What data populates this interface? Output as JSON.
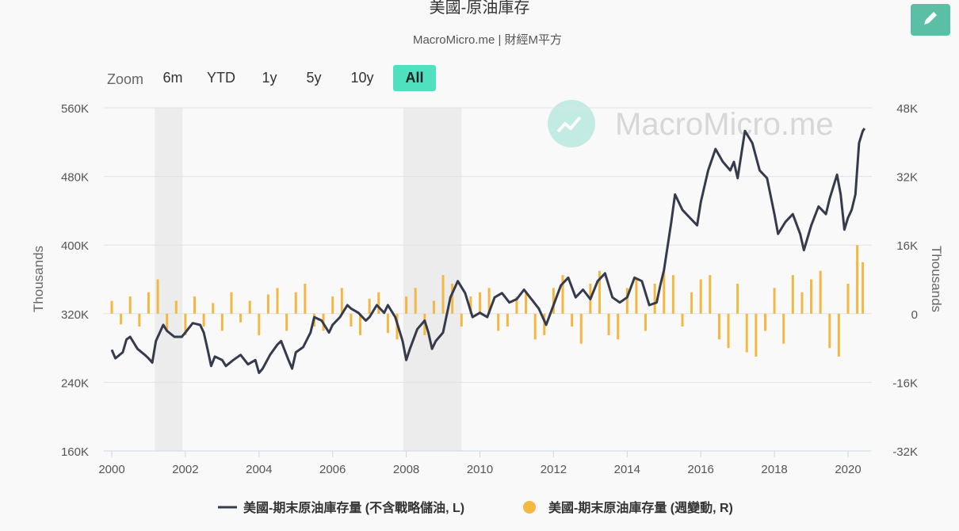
{
  "chart_data": {
    "type": "line-bar",
    "title": "美國-原油庫存",
    "subtitle": "MacroMicro.me | 財經M平方",
    "watermark": "MacroMicro.me",
    "zoom": {
      "label": "Zoom",
      "buttons": [
        "6m",
        "YTD",
        "1y",
        "5y",
        "10y",
        "All"
      ],
      "active": 5
    },
    "ylabel": "Thousands",
    "y2label": "Thousands",
    "xlim": [
      2000,
      2020.5
    ],
    "xticks": [
      2000,
      2002,
      2004,
      2006,
      2008,
      2010,
      2012,
      2014,
      2016,
      2018,
      2020
    ],
    "ylim": [
      160000,
      560000
    ],
    "yticks": [
      {
        "value": 160000,
        "label": "160K"
      },
      {
        "value": 240000,
        "label": "240K"
      },
      {
        "value": 320000,
        "label": "320K"
      },
      {
        "value": 400000,
        "label": "400K"
      },
      {
        "value": 480000,
        "label": "480K"
      },
      {
        "value": 560000,
        "label": "560K"
      }
    ],
    "y2lim": [
      -32000,
      48000
    ],
    "y2ticks": [
      {
        "value": -32000,
        "label": "-32K"
      },
      {
        "value": -16000,
        "label": "-16K"
      },
      0,
      {
        "value": 16000,
        "label": "16K"
      },
      {
        "value": 32000,
        "label": "32K"
      },
      {
        "value": 48000,
        "label": "48K"
      }
    ],
    "grid": true,
    "recessions": [
      [
        2001.17,
        2001.92
      ],
      [
        2007.92,
        2009.5
      ]
    ],
    "series": [
      {
        "name": "美國-期末原油庫存量 (不含戰略儲油, L)",
        "kind": "line",
        "color": "#363a4d",
        "x": [
          2000.0,
          2000.1,
          2000.3,
          2000.4,
          2000.5,
          2000.7,
          2000.9,
          2001.0,
          2001.1,
          2001.2,
          2001.4,
          2001.5,
          2001.7,
          2001.9,
          2002.0,
          2002.2,
          2002.4,
          2002.5,
          2002.6,
          2002.7,
          2002.8,
          2003.0,
          2003.1,
          2003.3,
          2003.5,
          2003.7,
          2003.9,
          2004.0,
          2004.1,
          2004.3,
          2004.5,
          2004.6,
          2004.8,
          2004.9,
          2005.0,
          2005.2,
          2005.4,
          2005.5,
          2005.7,
          2005.9,
          2006.0,
          2006.2,
          2006.4,
          2006.5,
          2006.7,
          2006.9,
          2007.0,
          2007.2,
          2007.4,
          2007.5,
          2007.7,
          2007.9,
          2008.0,
          2008.1,
          2008.3,
          2008.5,
          2008.6,
          2008.7,
          2008.8,
          2009.0,
          2009.2,
          2009.4,
          2009.6,
          2009.8,
          2010.0,
          2010.2,
          2010.4,
          2010.6,
          2010.8,
          2011.0,
          2011.2,
          2011.4,
          2011.6,
          2011.8,
          2012.0,
          2012.2,
          2012.4,
          2012.6,
          2012.8,
          2013.0,
          2013.2,
          2013.4,
          2013.6,
          2013.8,
          2014.0,
          2014.2,
          2014.4,
          2014.6,
          2014.8,
          2014.9,
          2015.0,
          2015.2,
          2015.3,
          2015.5,
          2015.7,
          2015.9,
          2016.0,
          2016.2,
          2016.4,
          2016.6,
          2016.8,
          2016.9,
          2017.0,
          2017.2,
          2017.4,
          2017.6,
          2017.8,
          2018.0,
          2018.1,
          2018.3,
          2018.5,
          2018.7,
          2018.8,
          2019.0,
          2019.2,
          2019.4,
          2019.5,
          2019.7,
          2019.8,
          2019.9,
          2020.0,
          2020.1,
          2020.2,
          2020.3,
          2020.4,
          2020.45
        ],
        "values": [
          278000,
          268000,
          275000,
          290000,
          293000,
          279000,
          272000,
          268000,
          263000,
          288000,
          307000,
          300000,
          293000,
          293000,
          298000,
          309000,
          307000,
          298000,
          279000,
          259000,
          270000,
          266000,
          259000,
          266000,
          272000,
          261000,
          266000,
          251000,
          256000,
          272000,
          284000,
          288000,
          266000,
          256000,
          275000,
          281000,
          298000,
          316000,
          312000,
          298000,
          307000,
          316000,
          330000,
          326000,
          321000,
          312000,
          316000,
          330000,
          321000,
          330000,
          316000,
          288000,
          266000,
          279000,
          302000,
          312000,
          298000,
          279000,
          288000,
          298000,
          339000,
          358000,
          344000,
          316000,
          321000,
          316000,
          339000,
          344000,
          333000,
          337000,
          348000,
          337000,
          326000,
          307000,
          330000,
          353000,
          362000,
          339000,
          348000,
          337000,
          358000,
          367000,
          339000,
          333000,
          339000,
          362000,
          358000,
          330000,
          333000,
          353000,
          371000,
          427000,
          459000,
          441000,
          432000,
          423000,
          450000,
          487000,
          512000,
          497000,
          487000,
          497000,
          478000,
          533000,
          519000,
          487000,
          478000,
          436000,
          413000,
          427000,
          436000,
          413000,
          394000,
          423000,
          445000,
          436000,
          454000,
          482000,
          459000,
          418000,
          432000,
          441000,
          459000,
          519000,
          533000,
          536000
        ]
      },
      {
        "name": "美國-期末原油庫存量 (週變動, R)",
        "kind": "bar",
        "axis": "y2",
        "color": "#f3b843",
        "x": [
          2000.0,
          2000.25,
          2000.5,
          2000.75,
          2001.0,
          2001.25,
          2001.5,
          2001.75,
          2002.0,
          2002.25,
          2002.5,
          2002.75,
          2003.0,
          2003.25,
          2003.5,
          2003.75,
          2004.0,
          2004.25,
          2004.5,
          2004.75,
          2005.0,
          2005.25,
          2005.5,
          2005.75,
          2006.0,
          2006.25,
          2006.5,
          2006.75,
          2007.0,
          2007.25,
          2007.5,
          2007.75,
          2008.0,
          2008.25,
          2008.5,
          2008.75,
          2009.0,
          2009.25,
          2009.5,
          2009.75,
          2010.0,
          2010.25,
          2010.5,
          2010.75,
          2011.0,
          2011.25,
          2011.5,
          2011.75,
          2012.0,
          2012.25,
          2012.5,
          2012.75,
          2013.0,
          2013.25,
          2013.5,
          2013.75,
          2014.0,
          2014.25,
          2014.5,
          2014.75,
          2015.0,
          2015.25,
          2015.5,
          2015.75,
          2016.0,
          2016.25,
          2016.5,
          2016.75,
          2017.0,
          2017.25,
          2017.5,
          2017.75,
          2018.0,
          2018.25,
          2018.5,
          2018.75,
          2019.0,
          2019.25,
          2019.5,
          2019.75,
          2020.0,
          2020.25,
          2020.4
        ],
        "values": [
          3000,
          -2500,
          4000,
          -3000,
          5000,
          8000,
          -4000,
          3000,
          -5000,
          4000,
          -3000,
          2500,
          -4000,
          5000,
          -2000,
          3000,
          -5000,
          4500,
          6000,
          -4000,
          5000,
          7000,
          -3000,
          -4000,
          4000,
          6000,
          -3000,
          -5000,
          3500,
          5000,
          -4500,
          -6000,
          4000,
          6000,
          -5000,
          3000,
          9000,
          7000,
          -3000,
          4000,
          5000,
          6000,
          -4000,
          -3000,
          4000,
          5000,
          -6000,
          -5000,
          6000,
          9000,
          -3000,
          -7000,
          7000,
          10000,
          -5000,
          -6000,
          6000,
          8000,
          -4000,
          7000,
          10000,
          9000,
          -3000,
          5000,
          8000,
          9000,
          -6000,
          -8000,
          7000,
          -9000,
          -10000,
          -4000,
          6000,
          -7000,
          9000,
          5000,
          8000,
          10000,
          -8000,
          -10000,
          7000,
          16000,
          12000
        ]
      }
    ]
  }
}
